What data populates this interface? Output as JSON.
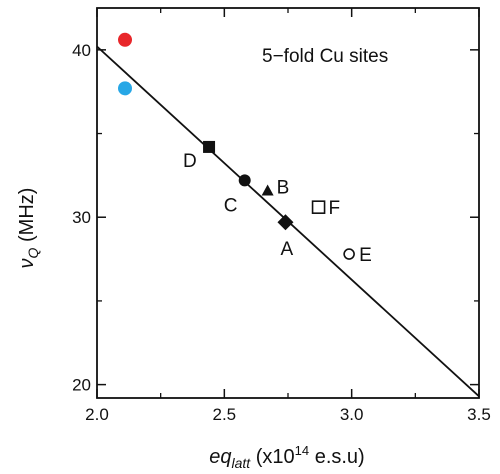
{
  "chart_data": {
    "type": "scatter",
    "annotation": "5−fold Cu sites",
    "xlabel": {
      "main": "eq",
      "sub": "latt",
      "unit_prefix": " (x10",
      "sup": "14",
      "unit_suffix": " e.s.u)"
    },
    "ylabel": {
      "main": "ν",
      "sub": "Q",
      "unit": " (MHz)"
    },
    "xlim": [
      2.0,
      3.5
    ],
    "ylim": [
      19.2,
      42.5
    ],
    "xticks": [
      2.0,
      2.5,
      3.0,
      3.5
    ],
    "xtick_labels": [
      "2.0",
      "2.5",
      "3.0",
      "3.5"
    ],
    "yticks": [
      20,
      30,
      40
    ],
    "ytick_labels": [
      "20",
      "30",
      "40"
    ],
    "xminor": [
      2.25,
      2.75,
      3.25
    ],
    "yminor": [
      25,
      35
    ],
    "grid": false,
    "fit_line": {
      "x": [
        2.0,
        3.5
      ],
      "y": [
        40.2,
        19.3
      ]
    },
    "points": [
      {
        "label": "D",
        "x": 2.44,
        "y": 34.2,
        "marker": "square-filled",
        "color": "#111111"
      },
      {
        "label": "C",
        "x": 2.58,
        "y": 32.2,
        "marker": "circle-filled",
        "color": "#111111"
      },
      {
        "label": "B",
        "x": 2.67,
        "y": 31.6,
        "marker": "triangle-filled",
        "color": "#111111"
      },
      {
        "label": "A",
        "x": 2.74,
        "y": 29.7,
        "marker": "diamond-filled",
        "color": "#111111"
      },
      {
        "label": "F",
        "x": 2.87,
        "y": 30.6,
        "marker": "square-open",
        "color": "#111111"
      },
      {
        "label": "E",
        "x": 2.99,
        "y": 27.8,
        "marker": "circle-open",
        "color": "#111111"
      },
      {
        "label": "",
        "x": 2.11,
        "y": 40.6,
        "marker": "dot-colored",
        "color": "#e8262a"
      },
      {
        "label": "",
        "x": 2.11,
        "y": 37.7,
        "marker": "dot-colored",
        "color": "#27a7e6"
      }
    ]
  }
}
